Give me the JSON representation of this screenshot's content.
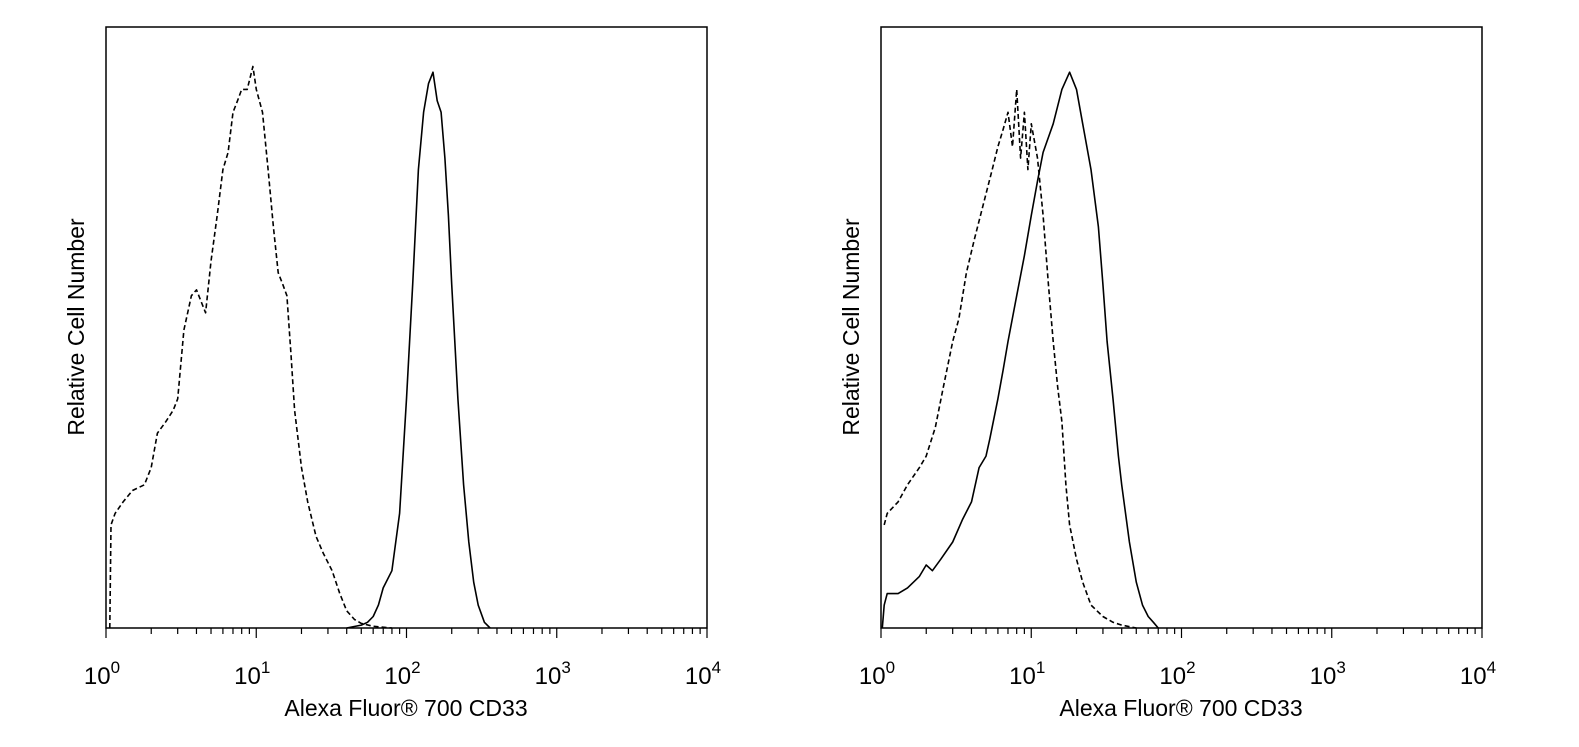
{
  "chart_data": [
    {
      "type": "line",
      "title": "",
      "xlabel": "Alexa Fluor® 700 CD33",
      "ylabel": "Relative Cell Number",
      "x_scale": "log",
      "xlim": [
        1,
        10000
      ],
      "ylim": [
        0,
        100
      ],
      "grid": false,
      "x_ticks": [
        {
          "value": 1,
          "base": "10",
          "exp": "0"
        },
        {
          "value": 10,
          "base": "10",
          "exp": "1"
        },
        {
          "value": 100,
          "base": "10",
          "exp": "2"
        },
        {
          "value": 1000,
          "base": "10",
          "exp": "3"
        },
        {
          "value": 10000,
          "base": "10",
          "exp": "4"
        }
      ],
      "series": [
        {
          "style": "dashed",
          "points": [
            [
              1.06,
              0
            ],
            [
              1.08,
              18
            ],
            [
              1.15,
              20
            ],
            [
              1.3,
              22
            ],
            [
              1.5,
              24
            ],
            [
              1.8,
              25
            ],
            [
              2.0,
              28
            ],
            [
              2.2,
              34
            ],
            [
              2.5,
              36
            ],
            [
              2.8,
              38
            ],
            [
              3.0,
              40
            ],
            [
              3.3,
              52
            ],
            [
              3.7,
              58
            ],
            [
              4.0,
              59
            ],
            [
              4.6,
              55
            ],
            [
              5.0,
              64
            ],
            [
              5.5,
              72
            ],
            [
              6.0,
              80
            ],
            [
              6.5,
              83
            ],
            [
              7.0,
              90
            ],
            [
              7.5,
              92
            ],
            [
              8.0,
              94
            ],
            [
              8.7,
              94
            ],
            [
              9.5,
              98
            ],
            [
              10,
              94
            ],
            [
              11,
              90
            ],
            [
              12,
              80
            ],
            [
              13,
              70
            ],
            [
              14,
              62
            ],
            [
              15,
              60
            ],
            [
              16,
              58
            ],
            [
              17,
              48
            ],
            [
              18,
              38
            ],
            [
              20,
              28
            ],
            [
              22,
              22
            ],
            [
              25,
              16
            ],
            [
              28,
              13
            ],
            [
              32,
              10
            ],
            [
              36,
              6
            ],
            [
              40,
              3
            ],
            [
              45,
              1.5
            ],
            [
              50,
              0.8
            ],
            [
              60,
              0.3
            ],
            [
              80,
              0
            ]
          ]
        },
        {
          "style": "solid",
          "points": [
            [
              40,
              0
            ],
            [
              50,
              0.5
            ],
            [
              55,
              1
            ],
            [
              60,
              2
            ],
            [
              65,
              4
            ],
            [
              70,
              7
            ],
            [
              80,
              10
            ],
            [
              90,
              20
            ],
            [
              100,
              40
            ],
            [
              110,
              60
            ],
            [
              120,
              80
            ],
            [
              130,
              90
            ],
            [
              140,
              95
            ],
            [
              150,
              97
            ],
            [
              160,
              92
            ],
            [
              170,
              90
            ],
            [
              180,
              82
            ],
            [
              190,
              72
            ],
            [
              200,
              60
            ],
            [
              220,
              40
            ],
            [
              240,
              25
            ],
            [
              260,
              15
            ],
            [
              280,
              8
            ],
            [
              300,
              4
            ],
            [
              330,
              1
            ],
            [
              360,
              0
            ]
          ]
        }
      ]
    },
    {
      "type": "line",
      "title": "",
      "xlabel": "Alexa Fluor® 700 CD33",
      "ylabel": "Relative Cell Number",
      "x_scale": "log",
      "xlim": [
        1,
        10000
      ],
      "ylim": [
        0,
        100
      ],
      "grid": false,
      "x_ticks": [
        {
          "value": 1,
          "base": "10",
          "exp": "0"
        },
        {
          "value": 10,
          "base": "10",
          "exp": "1"
        },
        {
          "value": 100,
          "base": "10",
          "exp": "2"
        },
        {
          "value": 1000,
          "base": "10",
          "exp": "3"
        },
        {
          "value": 10000,
          "base": "10",
          "exp": "4"
        }
      ],
      "series": [
        {
          "style": "dashed",
          "points": [
            [
              1.05,
              18
            ],
            [
              1.1,
              20
            ],
            [
              1.3,
              22
            ],
            [
              1.5,
              25
            ],
            [
              1.8,
              28
            ],
            [
              2.0,
              30
            ],
            [
              2.3,
              35
            ],
            [
              2.6,
              42
            ],
            [
              3.0,
              50
            ],
            [
              3.3,
              54
            ],
            [
              3.7,
              62
            ],
            [
              4.2,
              68
            ],
            [
              4.8,
              74
            ],
            [
              5.5,
              80
            ],
            [
              6.0,
              84
            ],
            [
              6.5,
              87
            ],
            [
              7.0,
              90
            ],
            [
              7.5,
              84
            ],
            [
              8.0,
              94
            ],
            [
              8.5,
              82
            ],
            [
              9.0,
              90
            ],
            [
              9.5,
              80
            ],
            [
              10,
              88
            ],
            [
              11,
              82
            ],
            [
              12,
              72
            ],
            [
              13,
              60
            ],
            [
              14,
              50
            ],
            [
              15,
              42
            ],
            [
              16,
              36
            ],
            [
              17,
              25
            ],
            [
              18,
              18
            ],
            [
              20,
              12
            ],
            [
              22,
              8
            ],
            [
              25,
              4
            ],
            [
              30,
              2
            ],
            [
              35,
              1
            ],
            [
              40,
              0.5
            ],
            [
              50,
              0
            ]
          ]
        },
        {
          "style": "solid",
          "points": [
            [
              1.02,
              0
            ],
            [
              1.05,
              4
            ],
            [
              1.1,
              6
            ],
            [
              1.3,
              6
            ],
            [
              1.5,
              7
            ],
            [
              1.8,
              9
            ],
            [
              2.0,
              11
            ],
            [
              2.2,
              10
            ],
            [
              2.5,
              12
            ],
            [
              3.0,
              15
            ],
            [
              3.5,
              19
            ],
            [
              4.0,
              22
            ],
            [
              4.5,
              28
            ],
            [
              5.0,
              30
            ],
            [
              5.3,
              33
            ],
            [
              6.0,
              40
            ],
            [
              6.5,
              45
            ],
            [
              7.0,
              50
            ],
            [
              8.0,
              58
            ],
            [
              9.0,
              65
            ],
            [
              10,
              72
            ],
            [
              11,
              78
            ],
            [
              12,
              83
            ],
            [
              14,
              88
            ],
            [
              16,
              94
            ],
            [
              18,
              97
            ],
            [
              20,
              94
            ],
            [
              22,
              88
            ],
            [
              25,
              80
            ],
            [
              28,
              70
            ],
            [
              30,
              60
            ],
            [
              32,
              50
            ],
            [
              35,
              40
            ],
            [
              38,
              30
            ],
            [
              40,
              25
            ],
            [
              45,
              15
            ],
            [
              50,
              8
            ],
            [
              55,
              4
            ],
            [
              60,
              2
            ],
            [
              65,
              1
            ],
            [
              70,
              0
            ]
          ]
        }
      ]
    }
  ]
}
